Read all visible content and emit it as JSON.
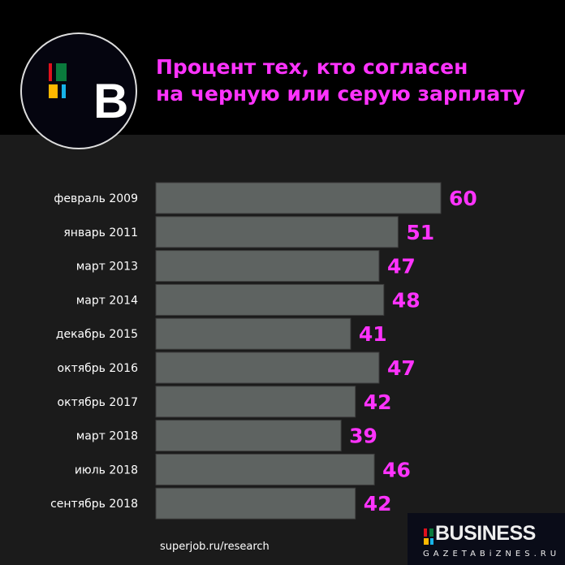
{
  "header": {
    "title_line1": "Процент тех, кто согласен",
    "title_line2": "на черную или серую зарплату",
    "logo_letter": "B"
  },
  "source": "superjob.ru/research",
  "brand": {
    "name": "BUSINESS",
    "url": "GAZETABiZNES.RU"
  },
  "colors": {
    "bar": "#5e6361",
    "label": "#ff33ff",
    "title": "#ff33ff",
    "background": "#1b1b1b"
  },
  "chart_data": {
    "type": "bar",
    "orientation": "horizontal",
    "categories": [
      "февраль 2009",
      "январь 2011",
      "март 2013",
      "март 2014",
      "декабрь 2015",
      "октябрь 2016",
      "октябрь 2017",
      "март 2018",
      "июль 2018",
      "сентябрь 2018"
    ],
    "values": [
      60,
      51,
      47,
      48,
      41,
      47,
      42,
      39,
      46,
      42
    ],
    "title": "Процент тех, кто согласен на черную или серую зарплату",
    "xlim": [
      0,
      60
    ],
    "grid": false
  }
}
